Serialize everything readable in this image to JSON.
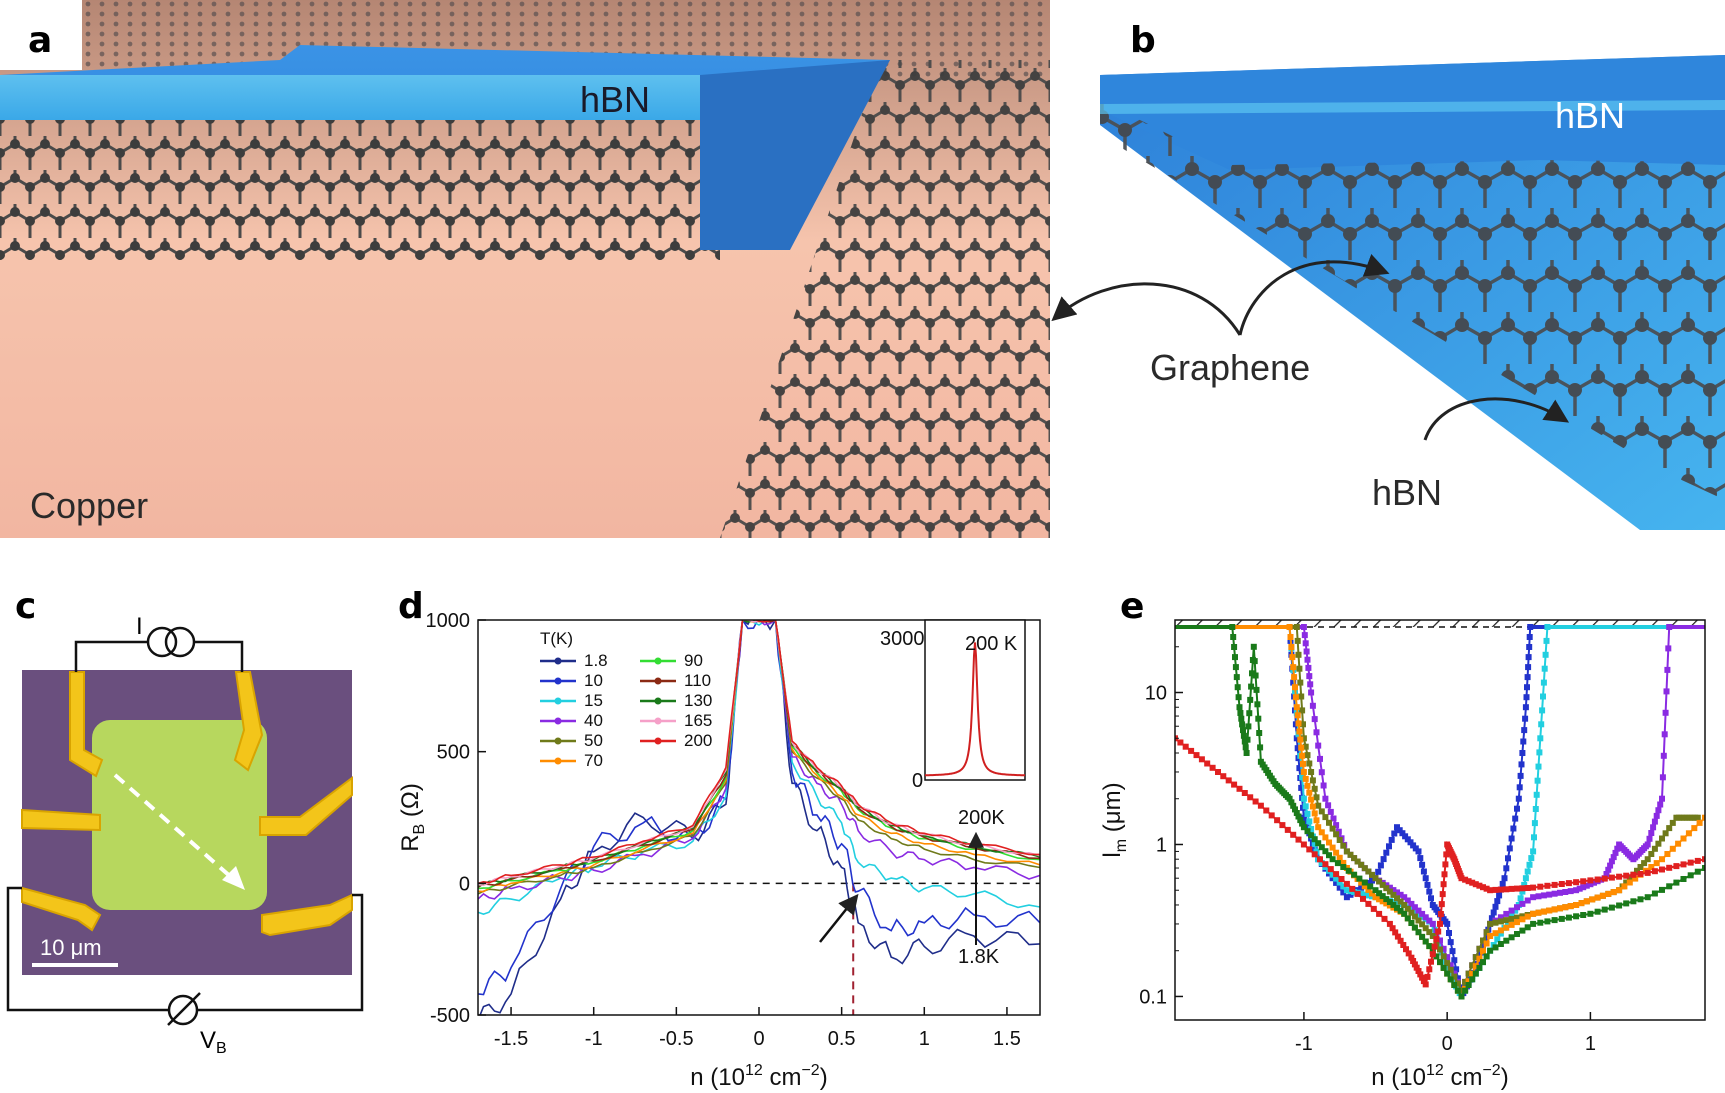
{
  "panels": {
    "a": {
      "label": "a",
      "hbn": "hBN",
      "copper": "Copper"
    },
    "b": {
      "label": "b",
      "hbn_top": "hBN",
      "hbn_bottom": "hBN",
      "graphene": "Graphene"
    },
    "c": {
      "label": "c",
      "current": "I",
      "voltage_main": "V",
      "voltage_sub": "B",
      "scale": "10 μm"
    },
    "d": {
      "label": "d",
      "legend_title": "T(K)",
      "arrow_top": "200K",
      "arrow_bottom": "1.8K",
      "inset_label": "200 K",
      "inset_ticks": [
        "3000",
        "0"
      ]
    },
    "e": {
      "label": "e"
    }
  },
  "chart_data": [
    {
      "id": "d",
      "type": "line",
      "xlabel_main": "n (10",
      "xlabel_sup": "12",
      "xlabel_unit": " cm",
      "xlabel_sup2": "−2",
      "xlabel_end": ")",
      "ylabel_main": "R",
      "ylabel_sub": "B",
      "ylabel_unit": " (Ω)",
      "xlim": [
        -1.7,
        1.7
      ],
      "ylim": [
        -500,
        1000
      ],
      "xticks": [
        -1.5,
        -1,
        -0.5,
        0,
        0.5,
        1,
        1.5
      ],
      "xtick_labels": [
        "-1.5",
        "-1",
        "-0.5",
        "0",
        "0.5",
        "1",
        "1.5"
      ],
      "yticks": [
        -500,
        0,
        500,
        1000
      ],
      "ytick_labels": [
        "-500",
        "0",
        "500",
        "1000"
      ],
      "reference_lines": {
        "y_dashed": 0,
        "x_dashed": 0.57
      },
      "series": [
        {
          "name": "1.8",
          "color": "#1f2d8a",
          "x": [
            -1.7,
            -1.5,
            -1.2,
            -1.0,
            -0.7,
            -0.4,
            -0.2,
            -0.1,
            0.1,
            0.2,
            0.35,
            0.5,
            0.6,
            0.8,
            1.0,
            1.3,
            1.7
          ],
          "y": [
            -520,
            -420,
            -60,
            120,
            250,
            180,
            300,
            1000,
            1000,
            380,
            200,
            60,
            -150,
            -280,
            -240,
            -200,
            -230
          ]
        },
        {
          "name": "10",
          "color": "#2233cc",
          "x": [
            -1.7,
            -1.5,
            -1.2,
            -1.0,
            -0.7,
            -0.4,
            -0.2,
            -0.1,
            0.1,
            0.2,
            0.35,
            0.5,
            0.6,
            0.8,
            1.0,
            1.3,
            1.7
          ],
          "y": [
            -420,
            -320,
            -20,
            140,
            230,
            170,
            320,
            1000,
            1000,
            420,
            260,
            150,
            -30,
            -180,
            -150,
            -120,
            -150
          ]
        },
        {
          "name": "15",
          "color": "#22cfe0",
          "x": [
            -1.7,
            -1.5,
            -1.2,
            -1.0,
            -0.7,
            -0.4,
            -0.2,
            -0.1,
            0.1,
            0.2,
            0.35,
            0.5,
            0.6,
            0.8,
            1.0,
            1.3,
            1.7
          ],
          "y": [
            -110,
            -60,
            20,
            60,
            120,
            160,
            330,
            1000,
            1000,
            460,
            330,
            230,
            80,
            20,
            -20,
            -40,
            -90
          ]
        },
        {
          "name": "40",
          "color": "#8a2be2",
          "x": [
            -1.7,
            -1.5,
            -1.2,
            -1.0,
            -0.7,
            -0.4,
            -0.2,
            -0.1,
            0.1,
            0.2,
            0.35,
            0.5,
            0.6,
            0.8,
            1.0,
            1.3,
            1.7
          ],
          "y": [
            -60,
            -20,
            20,
            50,
            110,
            170,
            360,
            1000,
            1000,
            480,
            380,
            300,
            200,
            120,
            90,
            60,
            30
          ]
        },
        {
          "name": "50",
          "color": "#6f7a1a",
          "x": [
            -1.7,
            -1.5,
            -1.2,
            -1.0,
            -0.7,
            -0.4,
            -0.2,
            -0.1,
            0.1,
            0.2,
            0.35,
            0.5,
            0.6,
            0.8,
            1.0,
            1.3,
            1.7
          ],
          "y": [
            -40,
            -10,
            30,
            60,
            120,
            180,
            380,
            1000,
            1000,
            500,
            400,
            320,
            240,
            170,
            130,
            90,
            60
          ]
        },
        {
          "name": "70",
          "color": "#ff8c00",
          "x": [
            -1.7,
            -1.5,
            -1.2,
            -1.0,
            -0.7,
            -0.4,
            -0.2,
            -0.1,
            0.1,
            0.2,
            0.35,
            0.5,
            0.6,
            0.8,
            1.0,
            1.3,
            1.7
          ],
          "y": [
            -30,
            0,
            40,
            70,
            130,
            190,
            390,
            1000,
            1000,
            510,
            410,
            330,
            260,
            190,
            150,
            110,
            70
          ]
        },
        {
          "name": "90",
          "color": "#33dd33",
          "x": [
            -1.7,
            -1.5,
            -1.2,
            -1.0,
            -0.7,
            -0.4,
            -0.2,
            -0.1,
            0.1,
            0.2,
            0.35,
            0.5,
            0.6,
            0.8,
            1.0,
            1.3,
            1.7
          ],
          "y": [
            -20,
            10,
            50,
            80,
            140,
            200,
            400,
            1000,
            1000,
            520,
            420,
            350,
            280,
            210,
            170,
            130,
            90
          ]
        },
        {
          "name": "110",
          "color": "#8b2a14",
          "x": [
            -1.7,
            -1.5,
            -1.2,
            -1.0,
            -0.7,
            -0.4,
            -0.2,
            -0.1,
            0.1,
            0.2,
            0.35,
            0.5,
            0.6,
            0.8,
            1.0,
            1.3,
            1.7
          ],
          "y": [
            -15,
            15,
            55,
            85,
            145,
            205,
            410,
            1000,
            1000,
            525,
            425,
            355,
            285,
            215,
            175,
            135,
            95
          ]
        },
        {
          "name": "130",
          "color": "#1a7a1a",
          "x": [
            -1.7,
            -1.5,
            -1.2,
            -1.0,
            -0.7,
            -0.4,
            -0.2,
            -0.1,
            0.1,
            0.2,
            0.35,
            0.5,
            0.6,
            0.8,
            1.0,
            1.3,
            1.7
          ],
          "y": [
            -10,
            20,
            60,
            90,
            150,
            210,
            420,
            1000,
            1000,
            530,
            430,
            360,
            290,
            220,
            180,
            140,
            100
          ]
        },
        {
          "name": "165",
          "color": "#f5a0c8",
          "x": [
            -1.7,
            -1.5,
            -1.2,
            -1.0,
            -0.7,
            -0.4,
            -0.2,
            -0.1,
            0.1,
            0.2,
            0.35,
            0.5,
            0.6,
            0.8,
            1.0,
            1.3,
            1.7
          ],
          "y": [
            -5,
            25,
            65,
            95,
            155,
            215,
            430,
            1000,
            1000,
            535,
            435,
            365,
            295,
            225,
            185,
            145,
            105
          ]
        },
        {
          "name": "200",
          "color": "#e02020",
          "x": [
            -1.7,
            -1.5,
            -1.2,
            -1.0,
            -0.7,
            -0.4,
            -0.2,
            -0.1,
            0.1,
            0.2,
            0.35,
            0.5,
            0.6,
            0.8,
            1.0,
            1.3,
            1.7
          ],
          "y": [
            0,
            30,
            70,
            100,
            160,
            220,
            440,
            1000,
            1000,
            540,
            440,
            370,
            300,
            230,
            190,
            150,
            110
          ]
        }
      ],
      "inset": {
        "ylim": [
          0,
          3000
        ],
        "color": "#e02020"
      }
    },
    {
      "id": "e",
      "type": "scatter",
      "xlabel_main": "n (10",
      "xlabel_sup": "12",
      "xlabel_unit": " cm",
      "xlabel_sup2": "−2",
      "xlabel_end": ")",
      "ylabel_main": "l",
      "ylabel_sub": "m",
      "ylabel_unit": " (μm)",
      "xlim": [
        -1.9,
        1.8
      ],
      "ylim": [
        0.07,
        30
      ],
      "yscale": "log",
      "xticks": [
        -1,
        0,
        1
      ],
      "xtick_labels": [
        "-1",
        "0",
        "1"
      ],
      "yticks": [
        0.1,
        1,
        10
      ],
      "ytick_labels": [
        "0.1",
        "1",
        "10"
      ],
      "ceiling": 27,
      "series": [
        {
          "name": "200",
          "color": "#e02020",
          "x": [
            -1.9,
            -1.6,
            -1.3,
            -1.0,
            -0.7,
            -0.4,
            -0.25,
            -0.15,
            -0.05,
            0.0,
            0.05,
            0.1,
            0.3,
            0.6,
            1.0,
            1.4,
            1.8
          ],
          "y": [
            5.0,
            3.0,
            1.8,
            1.0,
            0.55,
            0.3,
            0.18,
            0.12,
            0.3,
            1.0,
            0.8,
            0.6,
            0.5,
            0.52,
            0.58,
            0.65,
            0.8
          ]
        },
        {
          "name": "10",
          "color": "#2233cc",
          "x": [
            -1.1,
            -1.05,
            -1.0,
            -0.9,
            -0.7,
            -0.5,
            -0.35,
            -0.2,
            -0.1,
            0.0,
            0.1,
            0.2,
            0.3,
            0.4,
            0.5,
            0.55,
            0.58
          ],
          "y": [
            27,
            5.0,
            1.5,
            0.8,
            0.45,
            0.6,
            1.3,
            0.9,
            0.4,
            0.3,
            0.1,
            0.15,
            0.3,
            0.6,
            2.0,
            8.0,
            27
          ]
        },
        {
          "name": "15",
          "color": "#22cfe0",
          "x": [
            -1.1,
            -1.0,
            -0.9,
            -0.7,
            -0.5,
            -0.3,
            -0.1,
            0.0,
            0.1,
            0.3,
            0.5,
            0.6,
            0.65,
            0.7
          ],
          "y": [
            27,
            2.0,
            0.8,
            0.5,
            0.45,
            0.4,
            0.3,
            0.15,
            0.1,
            0.2,
            0.4,
            0.9,
            5.0,
            27
          ]
        },
        {
          "name": "40",
          "color": "#8a2be2",
          "x": [
            -1.0,
            -0.95,
            -0.85,
            -0.7,
            -0.5,
            -0.3,
            -0.1,
            0.1,
            0.3,
            0.6,
            0.9,
            1.1,
            1.2,
            1.3,
            1.4,
            1.5,
            1.55
          ],
          "y": [
            27,
            10,
            2.0,
            0.9,
            0.6,
            0.45,
            0.3,
            0.11,
            0.3,
            0.45,
            0.5,
            0.6,
            1.0,
            0.8,
            1.0,
            2.0,
            27
          ]
        },
        {
          "name": "50",
          "color": "#6f7a1a",
          "x": [
            -1.05,
            -1.0,
            -0.9,
            -0.7,
            -0.5,
            -0.3,
            -0.1,
            0.1,
            0.3,
            0.6,
            0.9,
            1.2,
            1.4,
            1.6,
            1.75
          ],
          "y": [
            27,
            5.0,
            1.8,
            0.9,
            0.6,
            0.4,
            0.25,
            0.11,
            0.3,
            0.35,
            0.4,
            0.5,
            0.8,
            1.5,
            1.5
          ]
        },
        {
          "name": "70",
          "color": "#ff8c00",
          "x": [
            -1.1,
            -1.05,
            -1.0,
            -0.9,
            -0.7,
            -0.5,
            -0.3,
            -0.1,
            0.1,
            0.3,
            0.6,
            0.9,
            1.2,
            1.5,
            1.8
          ],
          "y": [
            27,
            8.0,
            3.0,
            1.3,
            0.7,
            0.45,
            0.35,
            0.2,
            0.1,
            0.25,
            0.35,
            0.4,
            0.5,
            0.8,
            1.5
          ]
        },
        {
          "name": "130",
          "color": "#1a7a1a",
          "x": [
            -1.5,
            -1.45,
            -1.4,
            -1.35,
            -1.3,
            -1.2,
            -1.1,
            -1.0,
            -0.8,
            -0.5,
            -0.3,
            -0.1,
            0.1,
            0.3,
            0.6,
            1.0,
            1.4,
            1.8
          ],
          "y": [
            27,
            8.0,
            4.0,
            20,
            3.5,
            2.5,
            2.0,
            1.3,
            0.8,
            0.5,
            0.35,
            0.2,
            0.1,
            0.2,
            0.3,
            0.35,
            0.45,
            0.7
          ]
        }
      ]
    }
  ]
}
